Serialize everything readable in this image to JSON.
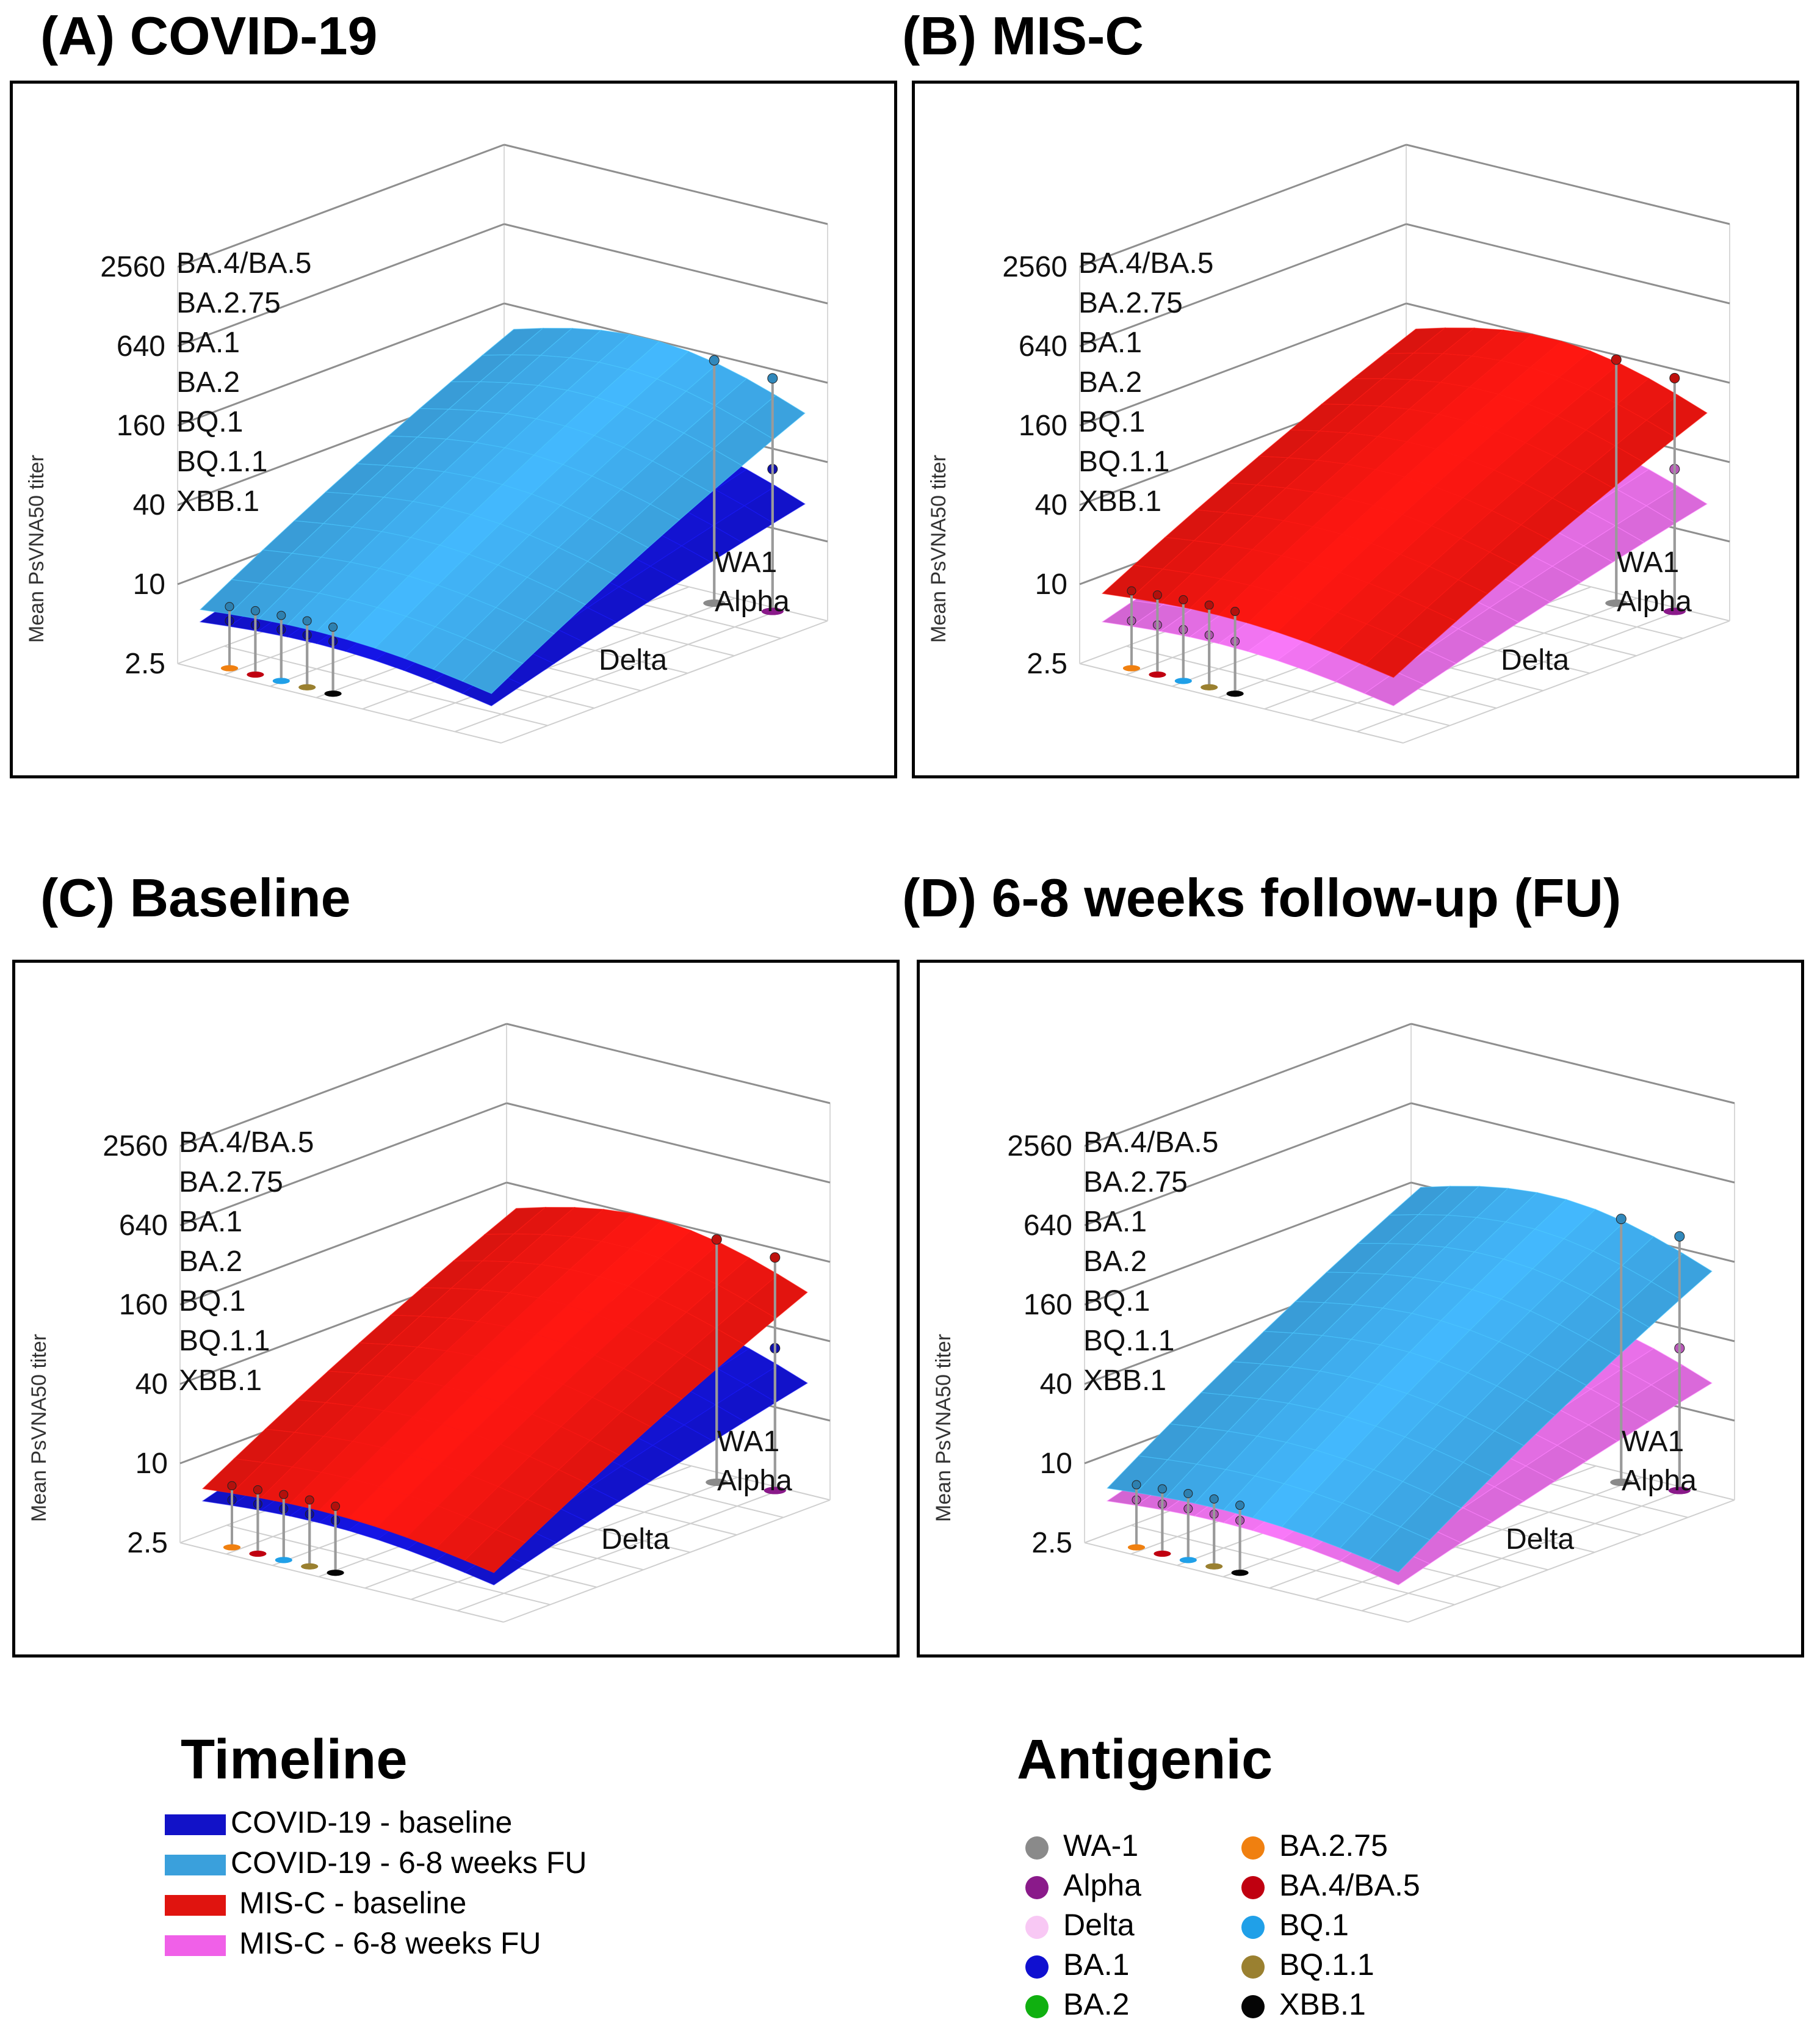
{
  "chart_data": [
    {
      "type": "surface3d",
      "panel_id": "A",
      "title": "(A) COVID-19",
      "ylabel": "Mean PsVNA50 titer",
      "y_scale": "log2",
      "y_ticks": [
        "2560",
        "640",
        "160",
        "40",
        "10",
        "2.5"
      ],
      "y_tick_values": [
        2560,
        640,
        160,
        40,
        10,
        2.5
      ],
      "axis_labels": [
        "BA.4/BA.5",
        "BA.2.75",
        "BA.1",
        "BA.2",
        "BQ.1",
        "BQ.1.1",
        "XBB.1"
      ],
      "ancestral_labels": [
        "WA1",
        "Alpha"
      ],
      "delta_label": "Delta",
      "series": [
        {
          "name": "COVID-19 - 6-8 weeks FU",
          "color": "#3aa0dc",
          "approx_titer_range": [
            6,
            110
          ]
        },
        {
          "name": "COVID-19 - baseline",
          "color": "#1212c8",
          "approx_titer_range": [
            5,
            22
          ]
        }
      ]
    },
    {
      "type": "surface3d",
      "panel_id": "B",
      "title": "(B) MIS-C",
      "ylabel": "Mean PsVNA50 titer",
      "y_scale": "log2",
      "y_ticks": [
        "2560",
        "640",
        "160",
        "40",
        "10",
        "2.5"
      ],
      "y_tick_values": [
        2560,
        640,
        160,
        40,
        10,
        2.5
      ],
      "axis_labels": [
        "BA.4/BA.5",
        "BA.2.75",
        "BA.1",
        "BA.2",
        "BQ.1",
        "BQ.1.1",
        "XBB.1"
      ],
      "ancestral_labels": [
        "WA1",
        "Alpha"
      ],
      "delta_label": "Delta",
      "series": [
        {
          "name": "MIS-C - baseline",
          "color": "#e0140f",
          "approx_titer_range": [
            8,
            110
          ]
        },
        {
          "name": "MIS-C - 6-8 weeks FU",
          "color": "#d868d8",
          "approx_titer_range": [
            5,
            22
          ]
        }
      ]
    },
    {
      "type": "surface3d",
      "panel_id": "C",
      "title": "(C) Baseline",
      "ylabel": "Mean PsVNA50 titer",
      "y_scale": "log2",
      "y_ticks": [
        "2560",
        "640",
        "160",
        "40",
        "10",
        "2.5"
      ],
      "y_tick_values": [
        2560,
        640,
        160,
        40,
        10,
        2.5
      ],
      "axis_labels": [
        "BA.4/BA.5",
        "BA.2.75",
        "BA.1",
        "BA.2",
        "BQ.1",
        "BQ.1.1",
        "XBB.1"
      ],
      "ancestral_labels": [
        "WA1",
        "Alpha"
      ],
      "delta_label": "Delta",
      "series": [
        {
          "name": "MIS-C - baseline",
          "color": "#e0140f",
          "approx_titer_range": [
            6,
            110
          ]
        },
        {
          "name": "COVID-19 - baseline",
          "color": "#1212c8",
          "approx_titer_range": [
            5,
            22
          ]
        }
      ]
    },
    {
      "type": "surface3d",
      "panel_id": "D",
      "title": "(D) 6-8 weeks follow-up (FU)",
      "ylabel": "Mean PsVNA50 titer",
      "y_scale": "log2",
      "y_ticks": [
        "2560",
        "640",
        "160",
        "40",
        "10",
        "2.5"
      ],
      "y_tick_values": [
        2560,
        640,
        160,
        40,
        10,
        2.5
      ],
      "axis_labels": [
        "BA.4/BA.5",
        "BA.2.75",
        "BA.1",
        "BA.2",
        "BQ.1",
        "BQ.1.1",
        "XBB.1"
      ],
      "ancestral_labels": [
        "WA1",
        "Alpha"
      ],
      "delta_label": "Delta",
      "series": [
        {
          "name": "COVID-19 - 6-8 weeks FU",
          "color": "#3aa0dc",
          "approx_titer_range": [
            6,
            160
          ]
        },
        {
          "name": "MIS-C - 6-8 weeks FU",
          "color": "#d868d8",
          "approx_titer_range": [
            5,
            22
          ]
        }
      ]
    }
  ],
  "legend": {
    "timeline_title": "Timeline",
    "timeline": [
      {
        "label": "COVID-19 - baseline",
        "color": "#1212c8"
      },
      {
        "label": "COVID-19 - 6-8 weeks FU",
        "color": "#3aa0dc"
      },
      {
        "label": "MIS-C - baseline",
        "color": "#e0140f"
      },
      {
        "label": "MIS-C - 6-8 weeks FU",
        "color": "#f060e8"
      }
    ],
    "antigenic_title": "Antigenic",
    "antigenic": [
      {
        "label": "WA-1",
        "color": "#8a8a8a"
      },
      {
        "label": "Alpha",
        "color": "#8a1a8a"
      },
      {
        "label": "Delta",
        "color": "#f8c8f4"
      },
      {
        "label": "BA.1",
        "color": "#1010d0"
      },
      {
        "label": "BA.2",
        "color": "#10b010"
      },
      {
        "label": "BA.2.75",
        "color": "#f08010"
      },
      {
        "label": "BA.4/BA.5",
        "color": "#c00010"
      },
      {
        "label": "BQ.1",
        "color": "#20a0e8"
      },
      {
        "label": "BQ.1.1",
        "color": "#9a8030"
      },
      {
        "label": "XBB.1",
        "color": "#050505"
      }
    ]
  }
}
